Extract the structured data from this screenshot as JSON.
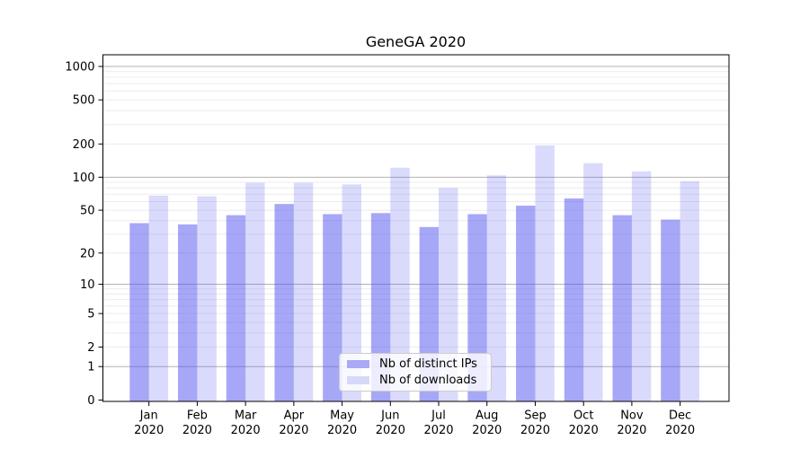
{
  "title": "GeneGA 2020",
  "chart_data": {
    "type": "bar",
    "title": "GeneGA 2020",
    "categories": [
      {
        "month": "Jan",
        "year": "2020"
      },
      {
        "month": "Feb",
        "year": "2020"
      },
      {
        "month": "Mar",
        "year": "2020"
      },
      {
        "month": "Apr",
        "year": "2020"
      },
      {
        "month": "May",
        "year": "2020"
      },
      {
        "month": "Jun",
        "year": "2020"
      },
      {
        "month": "Jul",
        "year": "2020"
      },
      {
        "month": "Aug",
        "year": "2020"
      },
      {
        "month": "Sep",
        "year": "2020"
      },
      {
        "month": "Oct",
        "year": "2020"
      },
      {
        "month": "Nov",
        "year": "2020"
      },
      {
        "month": "Dec",
        "year": "2020"
      }
    ],
    "series": [
      {
        "name": "Nb of distinct IPs",
        "fill": "rgba(86,86,240,0.52)",
        "legend_color": "#a9a9f5",
        "values": [
          38,
          37,
          45,
          57,
          46,
          47,
          35,
          46,
          55,
          64,
          45,
          41
        ]
      },
      {
        "name": "Nb of downloads",
        "fill": "rgba(86,86,240,0.22)",
        "legend_color": "#d8d8f8",
        "values": [
          68,
          67,
          89,
          89,
          86,
          122,
          80,
          104,
          194,
          134,
          113,
          92
        ]
      }
    ],
    "y_ticks": [
      0,
      1,
      2,
      5,
      10,
      20,
      50,
      100,
      200,
      500,
      1000
    ],
    "y_scale": "symlog",
    "ylim": [
      0,
      1270
    ],
    "grid": {
      "on": true,
      "major_lines": [
        1,
        10,
        100,
        1000
      ],
      "minor_multipliers_per_decade": [
        2,
        3,
        4,
        5,
        6,
        7,
        8,
        9
      ]
    },
    "legend_position": "lower center",
    "colors": {
      "major_grid": "#b2b2b2",
      "minor_grid": "#ececec",
      "spine": "#000000",
      "text": "#000000"
    }
  }
}
